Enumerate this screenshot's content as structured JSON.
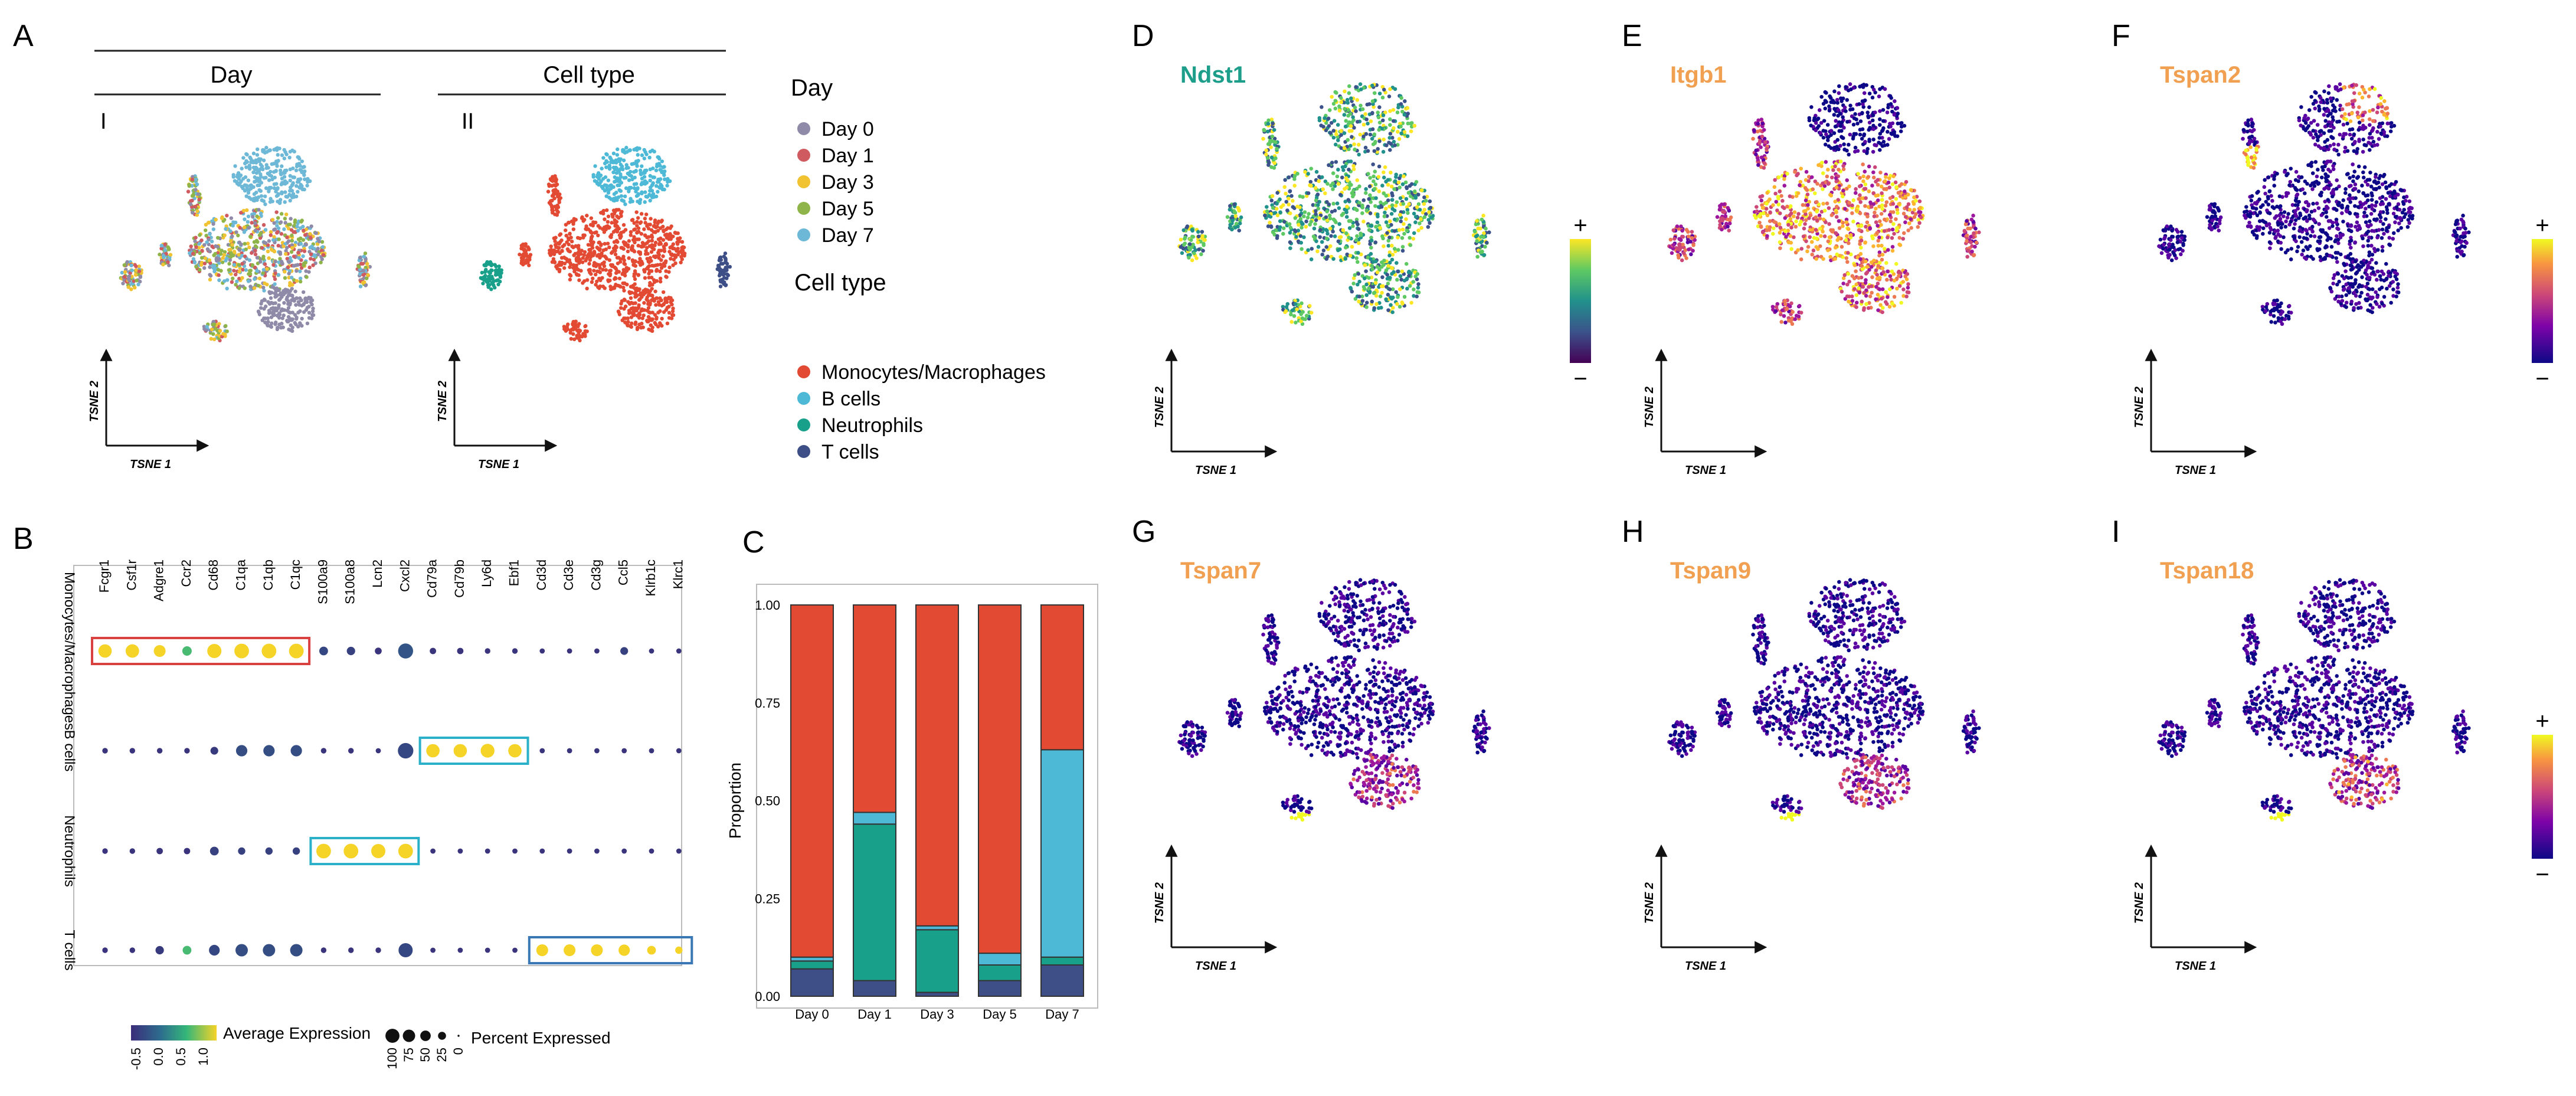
{
  "panels": {
    "A": {
      "letter": "A",
      "group_header_day": "Day",
      "group_header_celltype": "Cell type",
      "sub_I": "I",
      "sub_II": "II",
      "axis_x": "TSNE 1",
      "axis_y": "TSNE 2",
      "legend_day_title": "Day",
      "legend_day": [
        {
          "label": "Day 0",
          "color": "#8e8aa8"
        },
        {
          "label": "Day 1",
          "color": "#cf5a5f"
        },
        {
          "label": "Day 3",
          "color": "#f1c232"
        },
        {
          "label": "Day 5",
          "color": "#8fb54a"
        },
        {
          "label": "Day 7",
          "color": "#6db8d6"
        }
      ],
      "legend_celltype_title": "Cell type",
      "legend_celltype": [
        {
          "label": "Monocytes/Macrophages",
          "color": "#e34a33"
        },
        {
          "label": "B cells",
          "color": "#4db9d6"
        },
        {
          "label": "Neutrophils",
          "color": "#18a08a"
        },
        {
          "label": "T cells",
          "color": "#3d4f86"
        }
      ]
    },
    "B": {
      "letter": "B",
      "legend_expression_title": "Average Expression",
      "legend_expression_ticks": [
        "-0.5",
        "0.0",
        "0.5",
        "1.0"
      ],
      "legend_percent_title": "Percent Expressed",
      "legend_percent_ticks": [
        "100",
        "75",
        "50",
        "25",
        "0"
      ]
    },
    "C": {
      "letter": "C"
    },
    "D": {
      "letter": "D",
      "gene": "Ndst1",
      "gene_color": "#1d9e8a",
      "plus": "+",
      "minus": "−",
      "axis_x": "TSNE 1",
      "axis_y": "TSNE 2"
    },
    "E": {
      "letter": "E",
      "gene": "Itgb1",
      "gene_color": "#f0a050",
      "axis_x": "TSNE 1",
      "axis_y": "TSNE 2"
    },
    "F": {
      "letter": "F",
      "gene": "Tspan2",
      "gene_color": "#f0a050",
      "plus": "+",
      "minus": "−",
      "axis_x": "TSNE 1",
      "axis_y": "TSNE 2"
    },
    "G": {
      "letter": "G",
      "gene": "Tspan7",
      "gene_color": "#f0a050",
      "axis_x": "TSNE 1",
      "axis_y": "TSNE 2"
    },
    "H": {
      "letter": "H",
      "gene": "Tspan9",
      "gene_color": "#f0a050",
      "axis_x": "TSNE 1",
      "axis_y": "TSNE 2"
    },
    "I": {
      "letter": "I",
      "gene": "Tspan18",
      "gene_color": "#f0a050",
      "plus": "+",
      "minus": "−",
      "axis_x": "TSNE 1",
      "axis_y": "TSNE 2"
    }
  },
  "chart_data": [
    {
      "type": "dotplot",
      "panel": "B",
      "genes": [
        "Fcgr1",
        "Csf1r",
        "Adgre1",
        "Ccr2",
        "Cd68",
        "C1qa",
        "C1qb",
        "C1qc",
        "S100a9",
        "S100a8",
        "Lcn2",
        "Cxcl2",
        "Cd79a",
        "Cd79b",
        "Ly6d",
        "Ebf1",
        "Cd3d",
        "Cd3e",
        "Cd3g",
        "Ccl5",
        "Klrb1c",
        "Klrc1"
      ],
      "cell_types": [
        "Monocytes/Macrophages",
        "B cells",
        "Neutrophils",
        "T cells"
      ],
      "avg_expression": [
        [
          1.0,
          1.0,
          1.0,
          0.55,
          1.0,
          1.0,
          1.0,
          1.0,
          -0.3,
          -0.35,
          -0.45,
          -0.2,
          -0.45,
          -0.45,
          -0.45,
          -0.45,
          -0.45,
          -0.45,
          -0.45,
          -0.35,
          -0.45,
          -0.45
        ],
        [
          -0.45,
          -0.45,
          -0.45,
          -0.45,
          -0.4,
          -0.25,
          -0.25,
          -0.25,
          -0.45,
          -0.45,
          -0.45,
          -0.3,
          1.0,
          1.0,
          1.0,
          1.0,
          -0.45,
          -0.45,
          -0.45,
          -0.45,
          -0.45,
          -0.45
        ],
        [
          -0.45,
          -0.45,
          -0.45,
          -0.45,
          -0.35,
          -0.35,
          -0.35,
          -0.35,
          1.0,
          1.0,
          1.0,
          1.0,
          -0.45,
          -0.45,
          -0.45,
          -0.45,
          -0.45,
          -0.45,
          -0.45,
          -0.45,
          -0.45,
          -0.45
        ],
        [
          -0.45,
          -0.45,
          -0.4,
          0.55,
          -0.3,
          -0.25,
          -0.25,
          -0.25,
          -0.45,
          -0.45,
          -0.45,
          -0.3,
          -0.45,
          -0.45,
          -0.45,
          -0.45,
          1.0,
          1.0,
          1.0,
          1.0,
          1.0,
          1.0
        ]
      ],
      "pct_expressed": [
        [
          60,
          62,
          45,
          25,
          70,
          75,
          75,
          75,
          20,
          18,
          10,
          80,
          8,
          8,
          5,
          5,
          4,
          4,
          4,
          15,
          4,
          4
        ],
        [
          5,
          5,
          5,
          5,
          15,
          40,
          40,
          40,
          5,
          5,
          4,
          85,
          60,
          60,
          65,
          60,
          4,
          4,
          4,
          4,
          4,
          4
        ],
        [
          5,
          5,
          8,
          8,
          20,
          12,
          12,
          12,
          75,
          75,
          70,
          75,
          4,
          4,
          4,
          4,
          4,
          4,
          4,
          4,
          4,
          4
        ],
        [
          5,
          5,
          18,
          20,
          35,
          50,
          50,
          50,
          5,
          5,
          5,
          70,
          4,
          4,
          4,
          4,
          45,
          45,
          45,
          40,
          20,
          12
        ]
      ],
      "highlight_boxes": [
        {
          "row": "Monocytes/Macrophages",
          "from": "Fcgr1",
          "to": "C1qc",
          "color": "#d94040"
        },
        {
          "row": "B cells",
          "from": "Cd79a",
          "to": "Ebf1",
          "color": "#2ab0c8"
        },
        {
          "row": "Neutrophils",
          "from": "S100a9",
          "to": "Cxcl2",
          "color": "#2ab0c8"
        },
        {
          "row": "T cells",
          "from": "Cd3d",
          "to": "Klrc1",
          "color": "#3a78b5"
        }
      ]
    },
    {
      "type": "bar",
      "stacked": true,
      "panel": "C",
      "categories": [
        "Day 0",
        "Day 1",
        "Day 3",
        "Day 5",
        "Day 7"
      ],
      "series": [
        {
          "name": "T cells",
          "color": "#3d4f86",
          "values": [
            0.07,
            0.04,
            0.01,
            0.04,
            0.08
          ]
        },
        {
          "name": "Neutrophils",
          "color": "#18a08a",
          "values": [
            0.02,
            0.4,
            0.16,
            0.04,
            0.02
          ]
        },
        {
          "name": "B cells",
          "color": "#4db9d6",
          "values": [
            0.01,
            0.03,
            0.01,
            0.03,
            0.53
          ]
        },
        {
          "name": "Monocytes/Macrophages",
          "color": "#e34a33",
          "values": [
            0.9,
            0.53,
            0.82,
            0.89,
            0.37
          ]
        }
      ],
      "ylabel": "Proportion",
      "yticks": [
        "0.00",
        "0.25",
        "0.50",
        "0.75",
        "1.00"
      ],
      "ylim": [
        0,
        1
      ]
    }
  ]
}
